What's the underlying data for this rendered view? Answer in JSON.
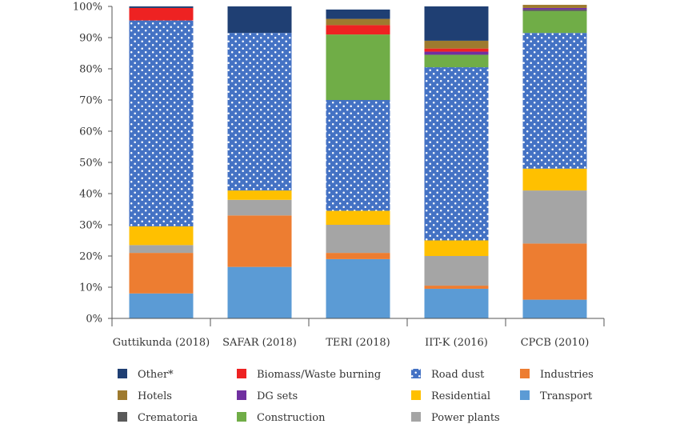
{
  "chart_data": {
    "type": "bar",
    "stacked": true,
    "normalized": true,
    "title": "",
    "xlabel": "",
    "ylabel": "",
    "ylim": [
      0,
      100
    ],
    "yticks": [
      "0%",
      "10%",
      "20%",
      "30%",
      "40%",
      "50%",
      "60%",
      "70%",
      "80%",
      "90%",
      "100%"
    ],
    "categories": [
      "Guttikunda (2018)",
      "SAFAR (2018)",
      "TERI (2018)",
      "IIT-K (2016)",
      "CPCB (2010)"
    ],
    "legend_position": "bottom",
    "series": [
      {
        "name": "Transport",
        "color": "#5b9bd5",
        "pattern": "none",
        "values": [
          8,
          16.5,
          19,
          9.5,
          6
        ]
      },
      {
        "name": "Industries",
        "color": "#ed7d31",
        "pattern": "none",
        "values": [
          13,
          16.5,
          2,
          1,
          18
        ]
      },
      {
        "name": "Power plants",
        "color": "#a5a5a5",
        "pattern": "none",
        "values": [
          2.5,
          5,
          9,
          9.5,
          17
        ]
      },
      {
        "name": "Residential",
        "color": "#ffc000",
        "pattern": "none",
        "values": [
          6,
          3,
          4.5,
          5,
          7
        ]
      },
      {
        "name": "Road dust",
        "color": "#4472c4",
        "pattern": "dots",
        "values": [
          66,
          50.5,
          35.5,
          55.5,
          43.5
        ]
      },
      {
        "name": "Construction",
        "color": "#70ad47",
        "pattern": "none",
        "values": [
          0,
          0,
          21,
          4,
          7
        ]
      },
      {
        "name": "Crematoria",
        "color": "#595959",
        "pattern": "none",
        "values": [
          0,
          0,
          0,
          0,
          0.5
        ]
      },
      {
        "name": "DG sets",
        "color": "#7030a0",
        "pattern": "none",
        "values": [
          0,
          0,
          0,
          1,
          0.5
        ]
      },
      {
        "name": "Biomass/Waste burning",
        "color": "#ee2222",
        "pattern": "none",
        "values": [
          4,
          0,
          3,
          1,
          0
        ]
      },
      {
        "name": "Hotels",
        "color": "#9e7a2e",
        "pattern": "none",
        "values": [
          0,
          0,
          2,
          2.5,
          1
        ]
      },
      {
        "name": "Other*",
        "color": "#1f3f73",
        "pattern": "none",
        "values": [
          0.5,
          8.5,
          3,
          11,
          0
        ]
      }
    ],
    "legend_order": [
      "Other*",
      "Biomass/Waste burning",
      "Road dust",
      "Industries",
      "Hotels",
      "DG sets",
      "Residential",
      "Transport",
      "Crematoria",
      "Construction",
      "Power plants"
    ]
  }
}
